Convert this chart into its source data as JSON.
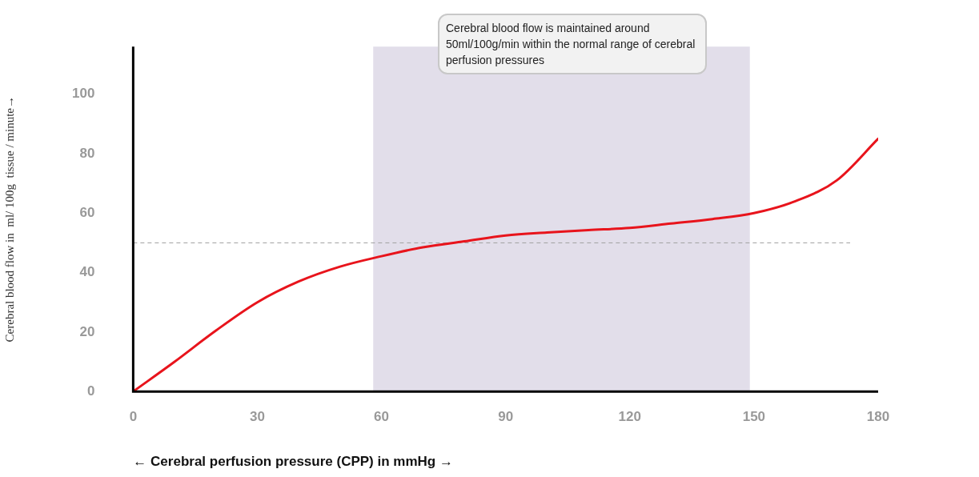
{
  "chart_data": {
    "type": "line",
    "xlabel": "← Cerebral perfusion pressure (CPP) in mmHg →",
    "ylabel": "Cerebral blood flow in  ml/ 100g  tissue / minute→",
    "x": [
      0,
      10,
      20,
      30,
      40,
      50,
      60,
      70,
      80,
      90,
      100,
      110,
      120,
      130,
      140,
      150,
      160,
      170,
      180
    ],
    "series": [
      {
        "color": "#e8141c",
        "values": [
          0,
          10,
          20.5,
          30,
          37,
          42,
          45.5,
          48.5,
          50.5,
          52.5,
          53.5,
          54.3,
          55,
          56.5,
          58,
          60,
          64,
          71,
          85
        ]
      }
    ],
    "xlim": [
      0,
      180
    ],
    "xticks": [
      0,
      30,
      60,
      90,
      120,
      150,
      180
    ],
    "ylim": [
      0,
      116
    ],
    "yticks": [
      0,
      20,
      40,
      60,
      80,
      100
    ],
    "grid": false,
    "legend": false,
    "marker": "none",
    "line_style": "solid",
    "ref_lines": [
      {
        "axis": "y",
        "value": 50,
        "color": "#a0a0a0",
        "line_style": "dashed"
      }
    ],
    "bands": [
      {
        "axis": "x",
        "from": 58,
        "to": 149,
        "color": "#e2deea"
      }
    ],
    "annotations": [
      "Cerebral blood flow is maintained around 50ml/100g/min within the normal range of cerebral perfusion pressures"
    ]
  }
}
